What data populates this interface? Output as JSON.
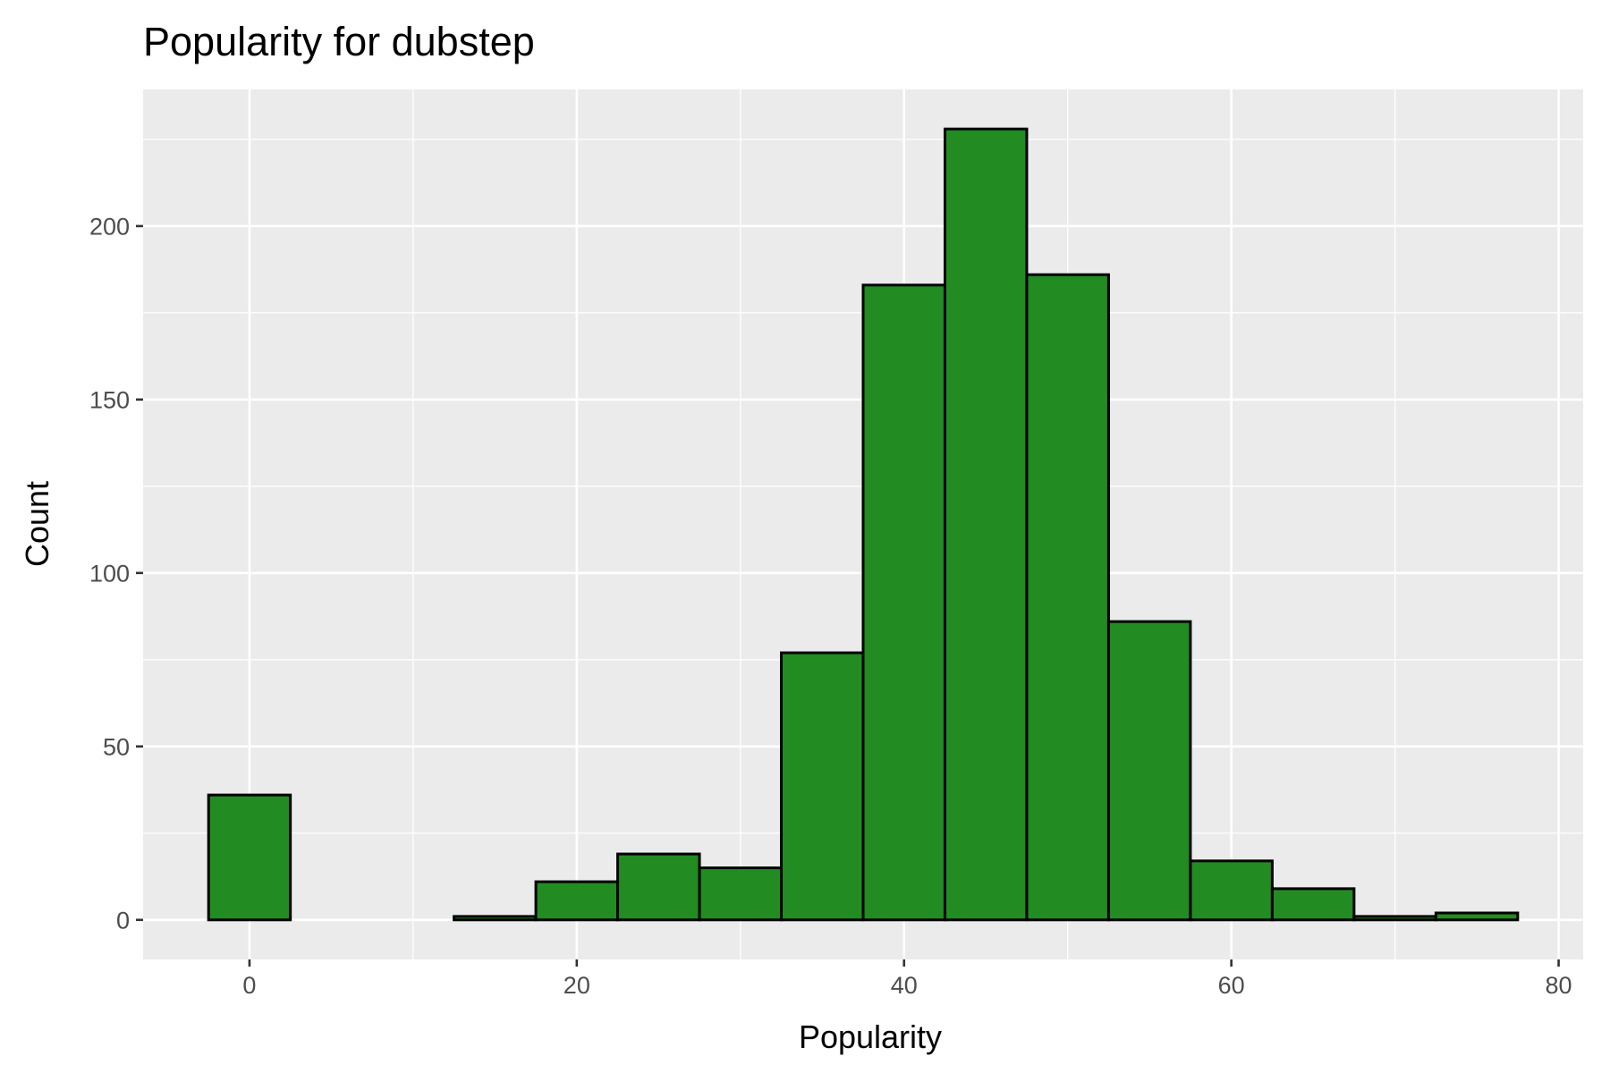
{
  "chart_data": {
    "type": "bar",
    "subtype": "histogram",
    "title": "Popularity for dubstep",
    "xlabel": "Popularity",
    "ylabel": "Count",
    "bin_width": 5,
    "bins": [
      {
        "x": 0,
        "count": 36
      },
      {
        "x": 5,
        "count": 0
      },
      {
        "x": 10,
        "count": 0
      },
      {
        "x": 15,
        "count": 1
      },
      {
        "x": 20,
        "count": 11
      },
      {
        "x": 25,
        "count": 19
      },
      {
        "x": 30,
        "count": 15
      },
      {
        "x": 35,
        "count": 77
      },
      {
        "x": 40,
        "count": 183
      },
      {
        "x": 45,
        "count": 228
      },
      {
        "x": 50,
        "count": 186
      },
      {
        "x": 55,
        "count": 86
      },
      {
        "x": 60,
        "count": 17
      },
      {
        "x": 65,
        "count": 9
      },
      {
        "x": 70,
        "count": 1
      },
      {
        "x": 75,
        "count": 2
      }
    ],
    "x_ticks": [
      0,
      20,
      40,
      60,
      80
    ],
    "y_ticks": [
      0,
      50,
      100,
      150,
      200
    ],
    "xlim": [
      -6.5,
      81.5
    ],
    "ylim": [
      -11.4,
      239.4
    ],
    "grid": true,
    "legend": "none",
    "colors": {
      "bar_fill": "#228B22",
      "bar_stroke": "#000000",
      "panel_background": "#EBEBEB",
      "grid": "#FFFFFF"
    }
  }
}
